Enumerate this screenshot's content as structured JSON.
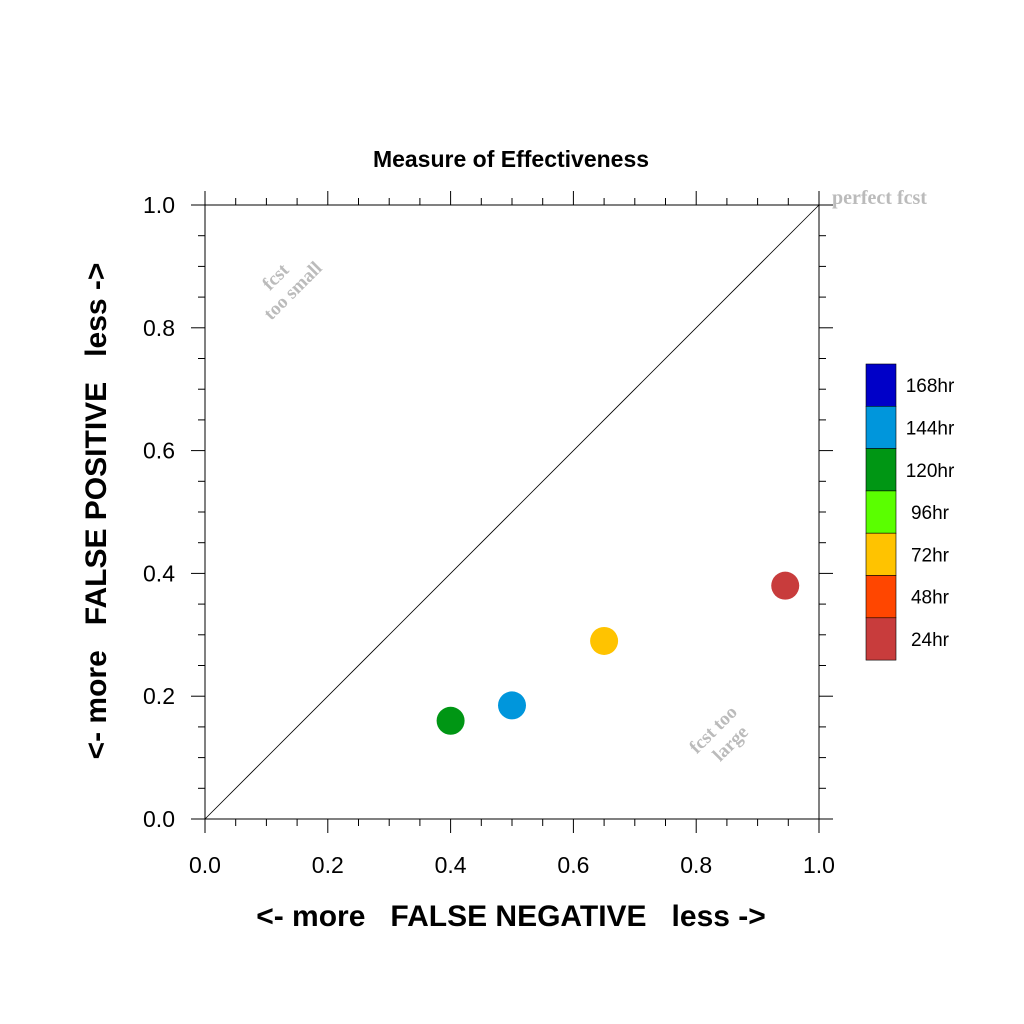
{
  "chart_data": {
    "type": "scatter",
    "title": "Measure of Effectiveness",
    "xlabel": "<- more   FALSE NEGATIVE   less ->",
    "ylabel": "<- more   FALSE POSITIVE   less ->",
    "xlim": [
      0.0,
      1.0
    ],
    "ylim": [
      0.0,
      1.0
    ],
    "xticks": [
      "0.0",
      "0.2",
      "0.4",
      "0.6",
      "0.8",
      "1.0"
    ],
    "yticks": [
      "0.0",
      "0.2",
      "0.4",
      "0.6",
      "0.8",
      "1.0"
    ],
    "grid": false,
    "reference_line": {
      "x": [
        0.0,
        1.0
      ],
      "y": [
        0.0,
        1.0
      ],
      "color": "#000000"
    },
    "annotations": {
      "perfect": "perfect fcst",
      "too_small_1": "fcst",
      "too_small_2": "too small",
      "too_large_1": "fcst too",
      "too_large_2": "large",
      "color": "#bbbbbb"
    },
    "legend": {
      "placement": "right",
      "entries": [
        {
          "label": "168hr",
          "color": "#0000c8"
        },
        {
          "label": "144hr",
          "color": "#0096dc"
        },
        {
          "label": "120hr",
          "color": "#009614"
        },
        {
          "label": "96hr",
          "color": "#5aff00"
        },
        {
          "label": "72hr",
          "color": "#ffc300"
        },
        {
          "label": "48hr",
          "color": "#ff4600"
        },
        {
          "label": "24hr",
          "color": "#c83c3c"
        }
      ]
    },
    "points": [
      {
        "lead": "120hr",
        "x": 0.4,
        "y": 0.16,
        "color": "#009614"
      },
      {
        "lead": "144hr",
        "x": 0.5,
        "y": 0.185,
        "color": "#0096dc"
      },
      {
        "lead": "72hr",
        "x": 0.65,
        "y": 0.29,
        "color": "#ffc300"
      },
      {
        "lead": "24hr",
        "x": 0.945,
        "y": 0.38,
        "color": "#c83c3c"
      }
    ]
  }
}
